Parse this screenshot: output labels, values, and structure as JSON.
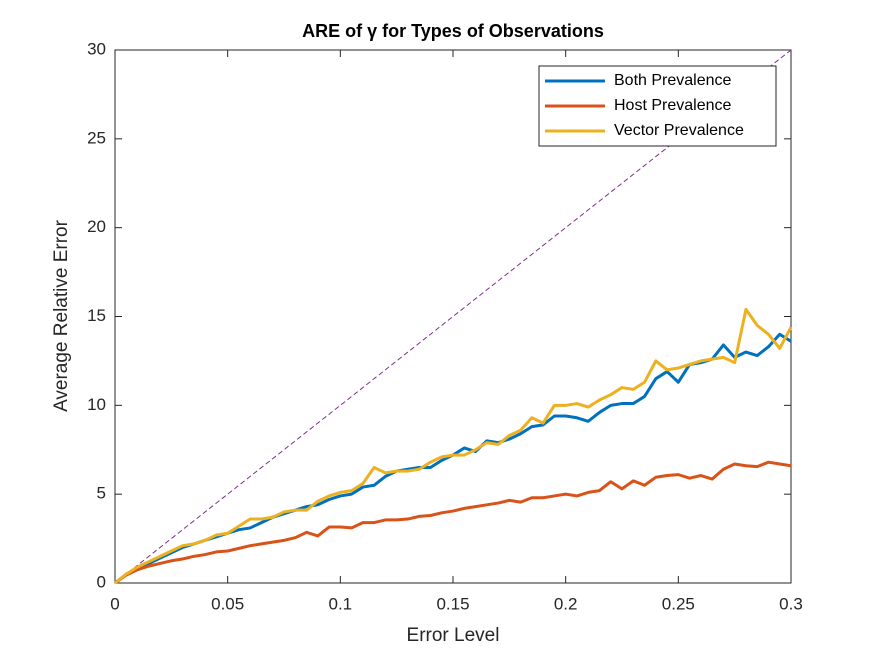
{
  "chart_data": {
    "type": "line",
    "title": "ARE of γ for Types of Observations",
    "xlabel": "Error Level",
    "ylabel": "Average Relative Error",
    "x": [
      0,
      0.005,
      0.01,
      0.015,
      0.02,
      0.025,
      0.03,
      0.035,
      0.04,
      0.045,
      0.05,
      0.055,
      0.06,
      0.065,
      0.07,
      0.075,
      0.08,
      0.085,
      0.09,
      0.095,
      0.1,
      0.105,
      0.11,
      0.115,
      0.12,
      0.125,
      0.13,
      0.135,
      0.14,
      0.145,
      0.15,
      0.155,
      0.16,
      0.165,
      0.17,
      0.175,
      0.18,
      0.185,
      0.19,
      0.195,
      0.2,
      0.205,
      0.21,
      0.215,
      0.22,
      0.225,
      0.23,
      0.235,
      0.24,
      0.245,
      0.25,
      0.255,
      0.26,
      0.265,
      0.27,
      0.275,
      0.28,
      0.285,
      0.29,
      0.295,
      0.3
    ],
    "series": [
      {
        "name": "Both Prevalence",
        "color": "#0072bd",
        "values": [
          0,
          0.5,
          0.8,
          1.1,
          1.4,
          1.7,
          2.0,
          2.2,
          2.4,
          2.6,
          2.8,
          3.0,
          3.1,
          3.4,
          3.7,
          3.9,
          4.1,
          4.3,
          4.4,
          4.7,
          4.9,
          5.0,
          5.4,
          5.5,
          6.0,
          6.3,
          6.4,
          6.5,
          6.5,
          6.9,
          7.2,
          7.6,
          7.4,
          8.0,
          7.9,
          8.1,
          8.4,
          8.8,
          8.9,
          9.4,
          9.4,
          9.3,
          9.1,
          9.6,
          10.0,
          10.1,
          10.1,
          10.5,
          11.5,
          11.9,
          11.3,
          12.3,
          12.4,
          12.6,
          13.4,
          12.7,
          13.0,
          12.8,
          13.3,
          14.0,
          13.6
        ]
      },
      {
        "name": "Host Prevalence",
        "color": "#d95319",
        "values": [
          0,
          0.45,
          0.75,
          0.95,
          1.1,
          1.25,
          1.35,
          1.5,
          1.6,
          1.75,
          1.8,
          1.95,
          2.1,
          2.2,
          2.3,
          2.4,
          2.55,
          2.85,
          2.65,
          3.15,
          3.15,
          3.1,
          3.4,
          3.4,
          3.55,
          3.55,
          3.6,
          3.75,
          3.8,
          3.95,
          4.05,
          4.2,
          4.3,
          4.4,
          4.5,
          4.65,
          4.55,
          4.8,
          4.8,
          4.9,
          5.0,
          4.9,
          5.1,
          5.2,
          5.7,
          5.3,
          5.75,
          5.5,
          5.95,
          6.05,
          6.1,
          5.9,
          6.05,
          5.85,
          6.4,
          6.7,
          6.6,
          6.55,
          6.8,
          6.7,
          6.6
        ]
      },
      {
        "name": "Vector Prevalence",
        "color": "#edb120",
        "values": [
          0,
          0.5,
          0.9,
          1.2,
          1.5,
          1.8,
          2.1,
          2.2,
          2.4,
          2.7,
          2.8,
          3.2,
          3.6,
          3.6,
          3.7,
          4.0,
          4.1,
          4.1,
          4.6,
          4.9,
          5.1,
          5.2,
          5.6,
          6.5,
          6.2,
          6.3,
          6.3,
          6.4,
          6.8,
          7.1,
          7.2,
          7.2,
          7.5,
          7.9,
          7.8,
          8.3,
          8.6,
          9.3,
          9.0,
          10.0,
          10.0,
          10.1,
          9.9,
          10.3,
          10.6,
          11.0,
          10.9,
          11.3,
          12.5,
          12.0,
          12.1,
          12.3,
          12.5,
          12.6,
          12.7,
          12.4,
          15.4,
          14.5,
          14.0,
          13.2,
          14.4
        ]
      }
    ],
    "reference": {
      "x": [
        0,
        0.3
      ],
      "y": [
        0,
        30
      ],
      "color": "#7e2f8e",
      "dashed": true
    },
    "xlim": [
      0,
      0.3
    ],
    "xticks": [
      0,
      0.05,
      0.1,
      0.15,
      0.2,
      0.25,
      0.3
    ],
    "ylim": [
      0,
      30
    ],
    "yticks": [
      0,
      5,
      10,
      15,
      20,
      25,
      30
    ],
    "grid": false,
    "legend": "northeast"
  }
}
